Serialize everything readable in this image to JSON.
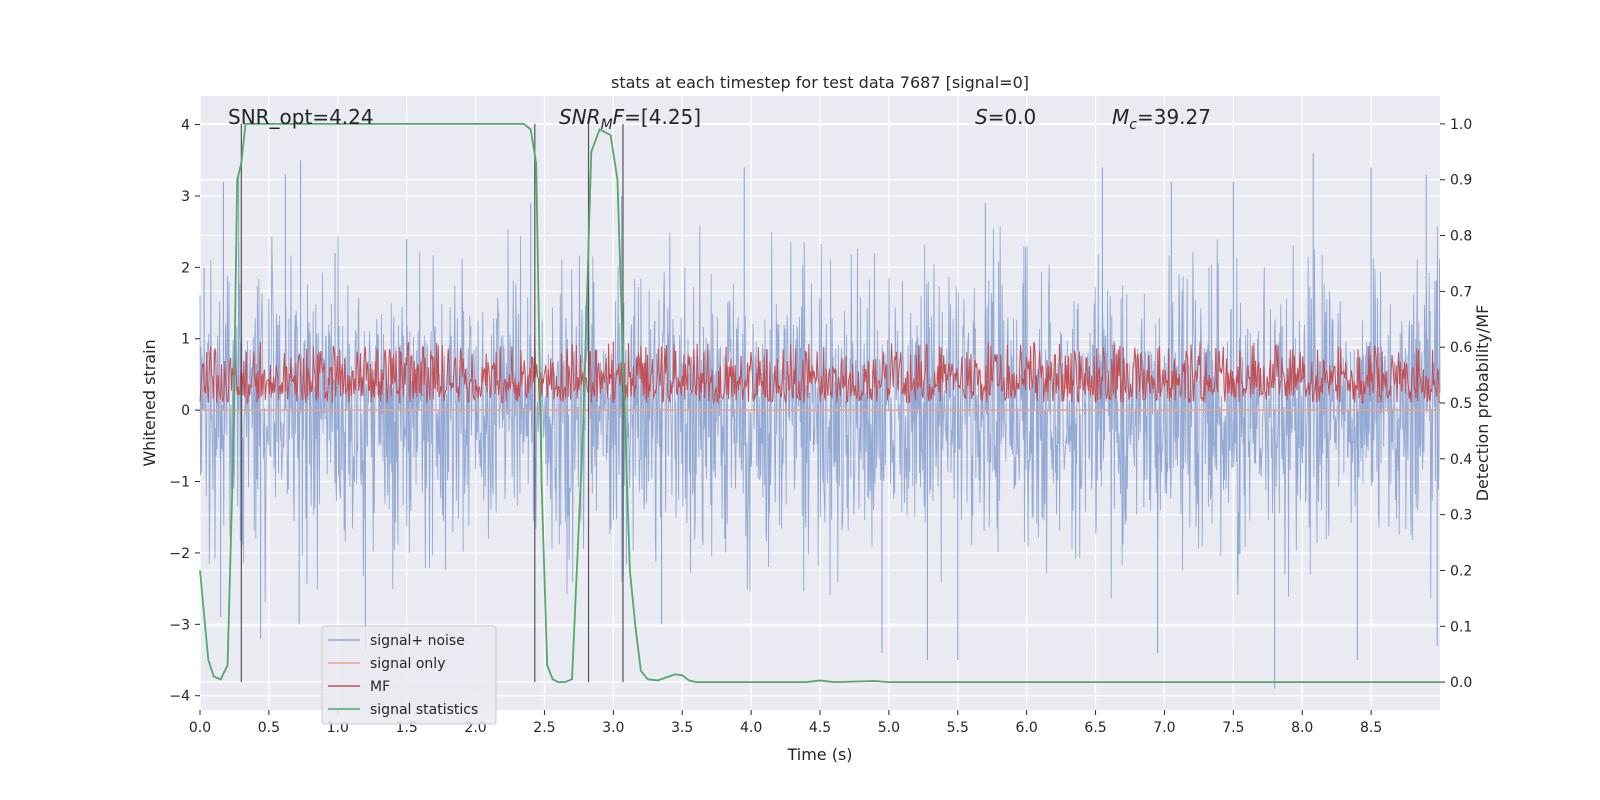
{
  "chart_data": {
    "type": "line",
    "title": "stats at each timestep for test data 7687 [signal=0]",
    "xlabel": "Time (s)",
    "ylabel_left": "Whitened strain",
    "ylabel_right": "Detection probability/MF",
    "xlim": [
      0.0,
      9.0
    ],
    "ylim_left": [
      -4.2,
      4.4
    ],
    "ylim_right": [
      -0.05,
      1.05
    ],
    "xticks": [
      0.0,
      0.5,
      1.0,
      1.5,
      2.0,
      2.5,
      3.0,
      3.5,
      4.0,
      4.5,
      5.0,
      5.5,
      6.0,
      6.5,
      7.0,
      7.5,
      8.0,
      8.5
    ],
    "xtick_labels": [
      "0.0",
      "0.5",
      "1.0",
      "1.5",
      "2.0",
      "2.5",
      "3.0",
      "3.5",
      "4.0",
      "4.5",
      "5.0",
      "5.5",
      "6.0",
      "6.5",
      "7.0",
      "7.5",
      "8.0",
      "8.5"
    ],
    "yticks_left": [
      4,
      3,
      2,
      1,
      0,
      -1,
      -2,
      -3,
      -4
    ],
    "ytick_labels_left": [
      "4",
      "3",
      "2",
      "1",
      "0",
      "−1",
      "−2",
      "−3",
      "−4"
    ],
    "yticks_right": [
      1.0,
      0.9,
      0.8,
      0.7,
      0.6,
      0.5,
      0.4,
      0.3,
      0.2,
      0.1,
      0.0
    ],
    "ytick_labels_right": [
      "1.0",
      "0.9",
      "0.8",
      "0.7",
      "0.6",
      "0.5",
      "0.4",
      "0.3",
      "0.2",
      "0.1",
      "0.0"
    ],
    "grid": true,
    "annotations": {
      "snr_opt": "SNR_opt=4.24",
      "snr_mf_name": "SNR",
      "snr_mf_sub": "M",
      "snr_mf_rest": "F",
      "snr_mf_value": "=[4.25]",
      "s_name": "S",
      "s_value": "=0.0",
      "mc_name": "M",
      "mc_sub": "c",
      "mc_value": "=39.27"
    },
    "legend": {
      "position": "lower-left",
      "entries": [
        {
          "label": "signal+ noise",
          "color": "#8fa6d2"
        },
        {
          "label": "signal only",
          "color": "#e8a588"
        },
        {
          "label": "MF",
          "color": "#c44e52"
        },
        {
          "label": "signal statistics",
          "color": "#55a868"
        }
      ]
    },
    "vlines": [
      0.3,
      2.43,
      2.82,
      3.07
    ],
    "series": [
      {
        "name": "signal+ noise",
        "axis": "left",
        "color": "#8fa6d2",
        "style": "dense noise, approx. range -4.0 to 3.6",
        "envelope_upper": 1.9,
        "envelope_lower": -2.0,
        "peaks_upper": [
          [
            0.03,
            2.0
          ],
          [
            0.17,
            3.2
          ],
          [
            0.28,
            3.3
          ],
          [
            0.62,
            3.3
          ],
          [
            0.73,
            3.5
          ],
          [
            0.98,
            2.2
          ],
          [
            1.5,
            2.4
          ],
          [
            2.4,
            2.9
          ],
          [
            2.82,
            3.4
          ],
          [
            3.06,
            3.0
          ],
          [
            3.95,
            3.4
          ],
          [
            5.7,
            2.9
          ],
          [
            6.55,
            3.4
          ],
          [
            7.05,
            3.2
          ],
          [
            7.5,
            3.2
          ],
          [
            8.08,
            3.6
          ],
          [
            8.5,
            3.4
          ],
          [
            8.9,
            3.3
          ]
        ],
        "peaks_lower": [
          [
            0.15,
            -2.9
          ],
          [
            0.44,
            -3.2
          ],
          [
            0.72,
            -3.0
          ],
          [
            1.2,
            -3.4
          ],
          [
            3.35,
            -3.0
          ],
          [
            4.95,
            -3.4
          ],
          [
            5.28,
            -3.5
          ],
          [
            5.5,
            -3.5
          ],
          [
            6.95,
            -3.4
          ],
          [
            7.8,
            -3.9
          ],
          [
            8.4,
            -3.5
          ],
          [
            8.98,
            -3.3
          ]
        ]
      },
      {
        "name": "signal only",
        "axis": "left",
        "color": "#e8a588",
        "x": [
          0.0,
          9.0
        ],
        "y": [
          0.0,
          0.0
        ]
      },
      {
        "name": "MF",
        "axis": "right",
        "color": "#c44e52",
        "style": "dense noise",
        "base": 0.5,
        "mean": 0.545,
        "max": 0.62,
        "peaks": [
          [
            0.3,
            0.61
          ],
          [
            1.45,
            0.6
          ],
          [
            2.43,
            0.62
          ],
          [
            3.0,
            0.61
          ],
          [
            6.7,
            0.6
          ],
          [
            8.55,
            0.6
          ]
        ]
      },
      {
        "name": "signal statistics",
        "axis": "right",
        "color": "#55a868",
        "x": [
          0.0,
          0.06,
          0.1,
          0.15,
          0.2,
          0.24,
          0.27,
          0.3,
          0.33,
          0.37,
          2.35,
          2.4,
          2.44,
          2.48,
          2.52,
          2.56,
          2.6,
          2.65,
          2.7,
          2.78,
          2.84,
          2.9,
          2.98,
          3.03,
          3.08,
          3.12,
          3.16,
          3.2,
          3.25,
          3.32,
          3.38,
          3.45,
          3.5,
          3.55,
          3.6,
          4.0,
          4.4,
          4.5,
          4.6,
          4.9,
          5.0,
          5.2,
          6.0,
          7.0,
          8.0,
          9.0
        ],
        "y": [
          0.2,
          0.04,
          0.01,
          0.005,
          0.03,
          0.4,
          0.9,
          0.93,
          1.0,
          1.0,
          1.0,
          0.99,
          0.93,
          0.35,
          0.03,
          0.005,
          0.0,
          0.0,
          0.005,
          0.45,
          0.95,
          0.99,
          0.98,
          0.9,
          0.5,
          0.2,
          0.1,
          0.02,
          0.005,
          0.003,
          0.008,
          0.014,
          0.012,
          0.003,
          0.0,
          0.0,
          0.0,
          0.003,
          0.0,
          0.002,
          0.0,
          0.0,
          0.0,
          0.0,
          0.0,
          0.0
        ]
      }
    ]
  }
}
